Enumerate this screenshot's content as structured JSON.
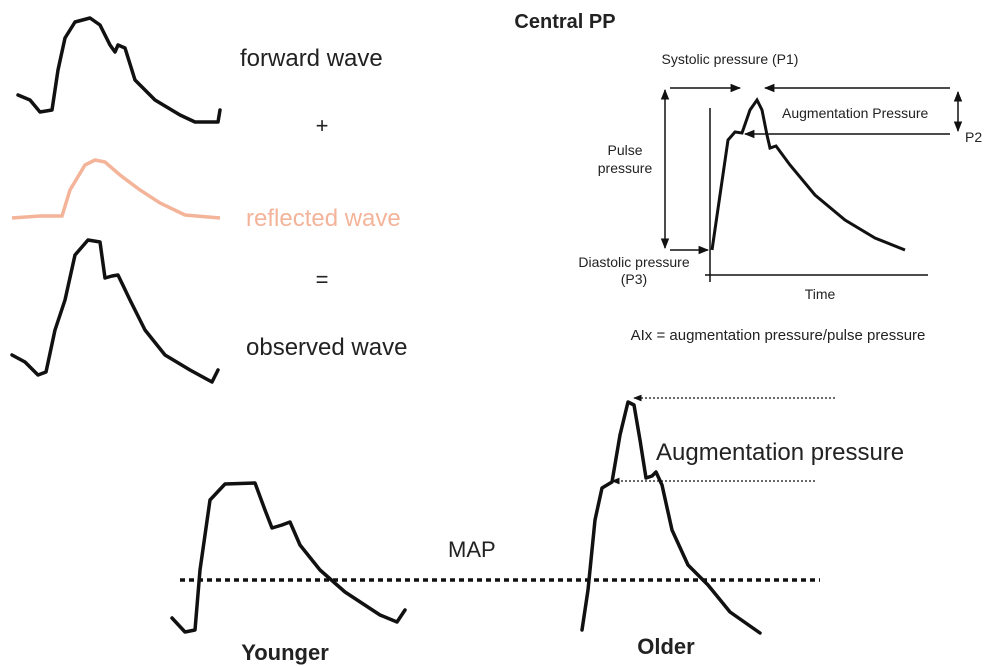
{
  "top": {
    "title": "Central PP",
    "forward": "forward wave",
    "plus": "+",
    "reflected": "reflected wave",
    "equals": "=",
    "observed": "observed wave"
  },
  "diagram": {
    "systolic": "Systolic pressure (P1)",
    "augmentation": "Augmentation Pressure",
    "p2": "P2",
    "pulse_pressure": [
      "Pulse",
      "pressure"
    ],
    "diastolic": [
      "Diastolic pressure",
      "(P3)"
    ],
    "time": "Time",
    "aix": "AIx = augmentation pressure/pulse pressure"
  },
  "bottom": {
    "augmentation": "Augmentation pressure",
    "map": "MAP",
    "younger": "Younger",
    "older": "Older"
  }
}
